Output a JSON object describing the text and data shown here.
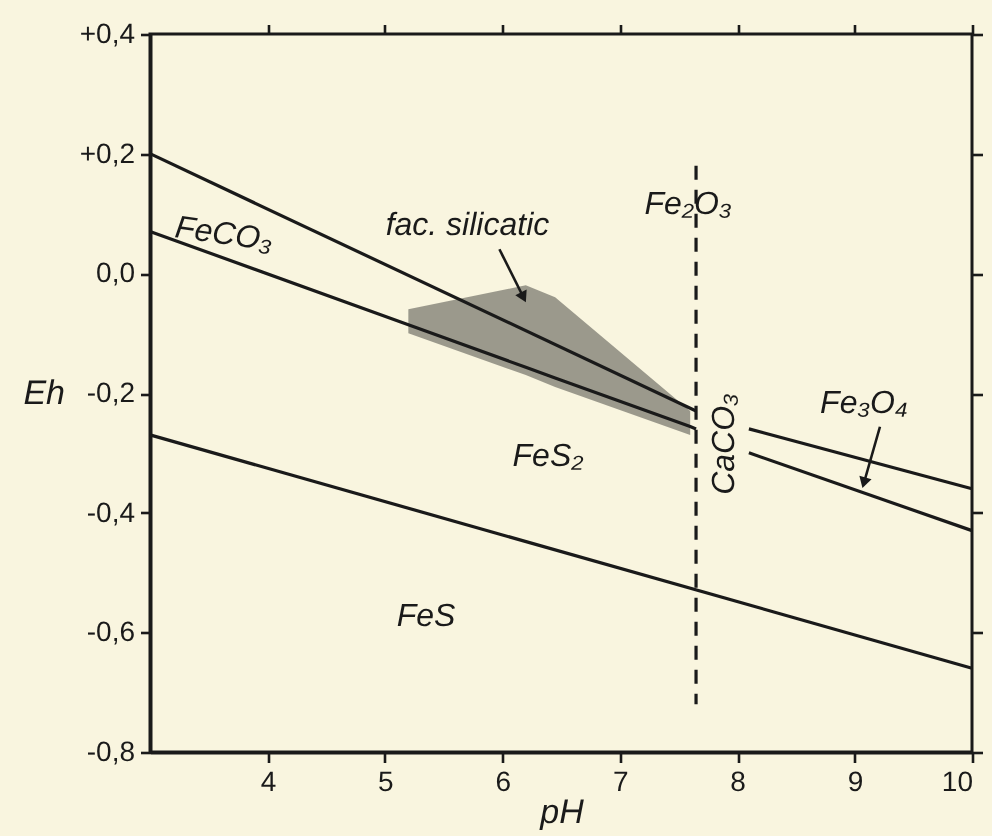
{
  "chart_data": {
    "type": "line",
    "xlabel": "pH",
    "ylabel": "Eh",
    "xlim": [
      3,
      10
    ],
    "ylim": [
      -0.8,
      0.4
    ],
    "xticks": [
      4,
      5,
      6,
      7,
      8,
      9,
      10
    ],
    "yticks": [
      {
        "value": 0.4,
        "label": "+0,4"
      },
      {
        "value": 0.2,
        "label": "+0,2"
      },
      {
        "value": 0,
        "label": "0,0"
      },
      {
        "value": -0.2,
        "label": "-0,2"
      },
      {
        "value": -0.4,
        "label": "-0,4"
      },
      {
        "value": -0.6,
        "label": "-0,6"
      },
      {
        "value": -0.8,
        "label": "-0,8"
      }
    ],
    "line_style": "solid",
    "series": [
      {
        "color": "#1a1a1a",
        "x": [
          3,
          7.65
        ],
        "values": [
          0.2,
          -0.23
        ]
      },
      {
        "color": "#1a1a1a",
        "x": [
          3,
          5.2,
          6.2,
          6.45,
          7.6,
          7.65
        ],
        "values": [
          0.07,
          -0.086,
          -0.157,
          -0.175,
          -0.256,
          -0.26
        ],
        "lower": [
          null,
          -0.1,
          -0.17,
          -0.19,
          -0.27,
          null
        ],
        "upper": [
          null,
          -0.06,
          -0.02,
          -0.04,
          -0.23,
          null
        ]
      },
      {
        "color": "#1a1a1a",
        "x": [
          8.1,
          10
        ],
        "values": [
          -0.26,
          -0.36
        ]
      },
      {
        "color": "#1a1a1a",
        "x": [
          8.1,
          10
        ],
        "values": [
          -0.3,
          -0.43
        ]
      },
      {
        "color": "#1a1a1a",
        "x": [
          3,
          10
        ],
        "values": [
          -0.27,
          -0.66
        ]
      },
      {
        "color": "#1a1a1a",
        "x": [
          7.65,
          7.65
        ],
        "values": [
          0.18,
          -0.72
        ],
        "line_style": "dashed"
      }
    ],
    "annotations": [
      "FeCO₃",
      {
        "text": "fac. silicatic",
        "x": 6.18,
        "y": -0.04
      },
      "Fe₂O₃",
      "FeS₂",
      "CaCO₃",
      {
        "text": "Fe₃O₄",
        "x": 9.08,
        "y": -0.35
      },
      "FeS"
    ]
  }
}
